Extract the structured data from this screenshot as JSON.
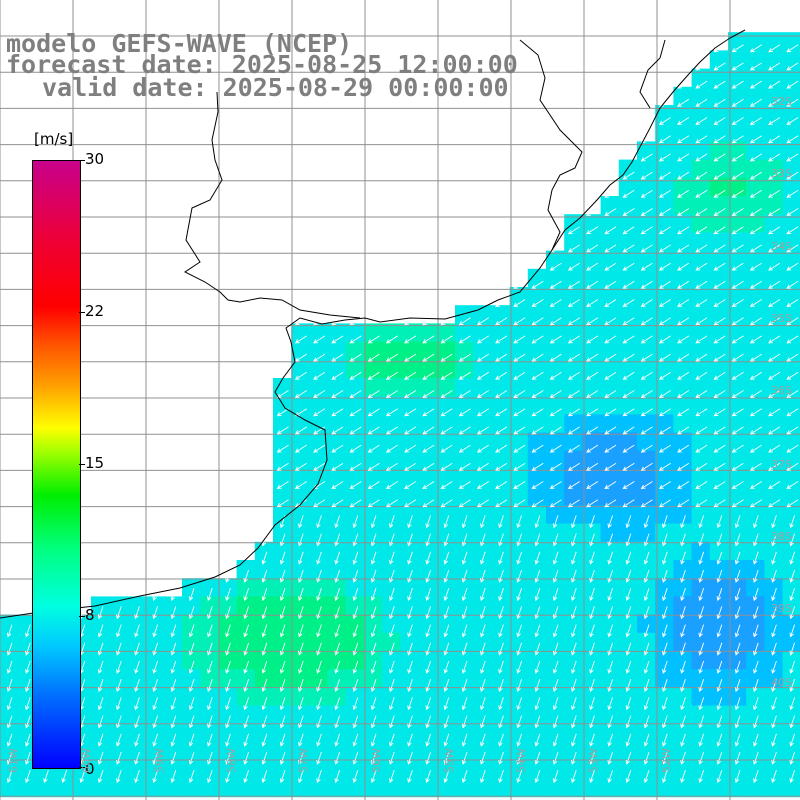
{
  "title": {
    "line1": "modelo GEFS-WAVE (NCEP)",
    "line2": "forecast date: 2025-08-25 12:00:00",
    "line3": "valid date: 2025-08-29 00:00:00"
  },
  "colorbar": {
    "units": "[m/s]",
    "ticks": [
      "30",
      "22",
      "15",
      "8",
      "0"
    ],
    "min": 0,
    "max": 30,
    "colors": [
      "#0000ff",
      "#0070ff",
      "#00c8ff",
      "#00ffe0",
      "#00ff80",
      "#00ee00",
      "#a0ff00",
      "#ffff00",
      "#ffa000",
      "#ff5000",
      "#ff0000",
      "#c8008c"
    ]
  },
  "map": {
    "lat_labels": [
      "32S",
      "33S",
      "34S",
      "35S",
      "36S",
      "37S",
      "38S",
      "39S",
      "40S"
    ],
    "lon_labels": [
      "61W",
      "60W",
      "59W",
      "58W",
      "57W",
      "56W",
      "55W",
      "54W",
      "53W",
      "52W"
    ],
    "grid_visible": true,
    "land_color": "#ffffff",
    "arrow_color": "#ffffff",
    "prevailing_wind_direction": "southwest"
  }
}
